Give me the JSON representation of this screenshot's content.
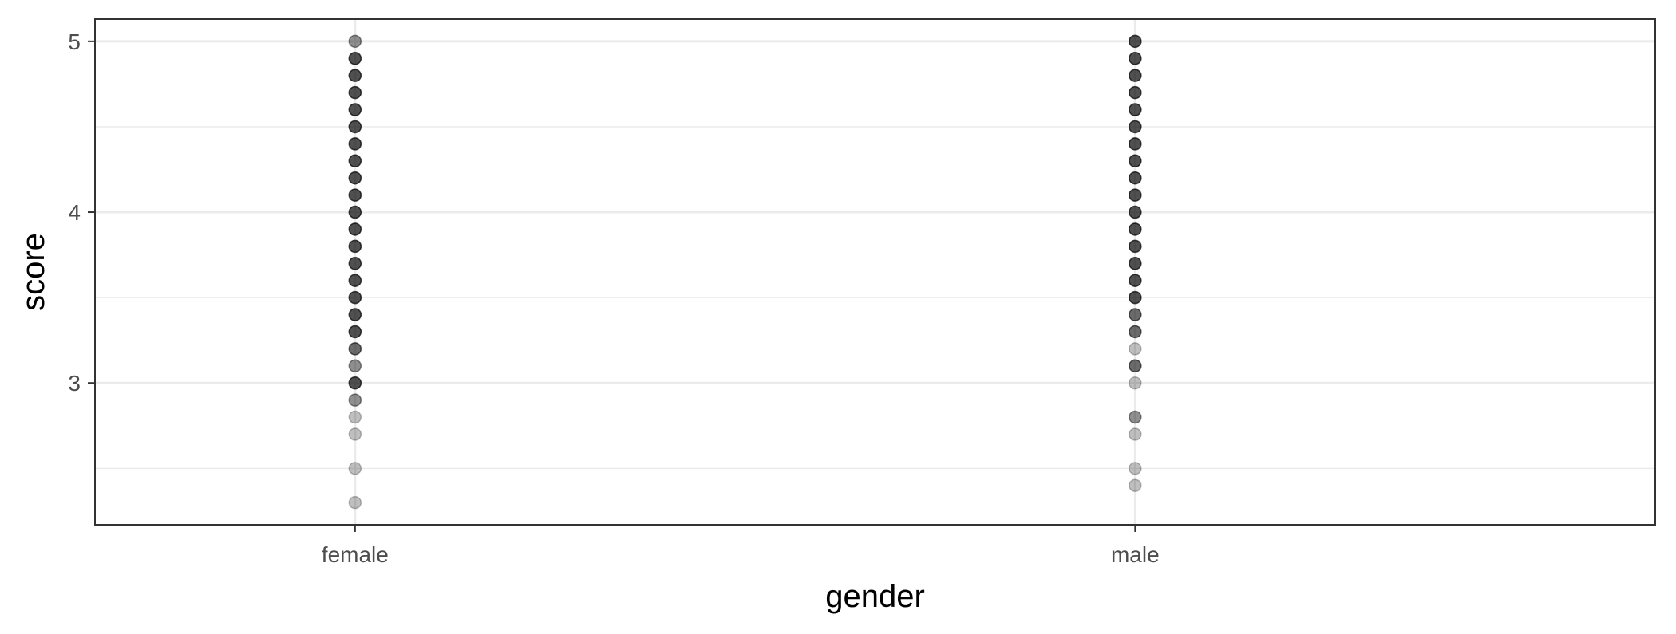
{
  "chart_data": {
    "type": "scatter",
    "title": "",
    "xlabel": "gender",
    "ylabel": "score",
    "categories": [
      "female",
      "male"
    ],
    "ylim": [
      2.17,
      5.13
    ],
    "y_ticks": [
      3,
      4,
      5
    ],
    "y_minor_ticks": [
      2.5,
      3.5,
      4.5
    ],
    "grid": true,
    "point_color": "#000000",
    "series": [
      {
        "category": "female",
        "points": [
          {
            "y": 5.0,
            "n": 2
          },
          {
            "y": 4.9,
            "n": 4
          },
          {
            "y": 4.8,
            "n": 4
          },
          {
            "y": 4.7,
            "n": 4
          },
          {
            "y": 4.6,
            "n": 4
          },
          {
            "y": 4.5,
            "n": 4
          },
          {
            "y": 4.4,
            "n": 4
          },
          {
            "y": 4.3,
            "n": 4
          },
          {
            "y": 4.2,
            "n": 4
          },
          {
            "y": 4.1,
            "n": 4
          },
          {
            "y": 4.0,
            "n": 4
          },
          {
            "y": 3.9,
            "n": 4
          },
          {
            "y": 3.8,
            "n": 4
          },
          {
            "y": 3.7,
            "n": 4
          },
          {
            "y": 3.6,
            "n": 4
          },
          {
            "y": 3.5,
            "n": 4
          },
          {
            "y": 3.4,
            "n": 4
          },
          {
            "y": 3.3,
            "n": 4
          },
          {
            "y": 3.2,
            "n": 3
          },
          {
            "y": 3.1,
            "n": 2
          },
          {
            "y": 3.0,
            "n": 4
          },
          {
            "y": 2.9,
            "n": 2
          },
          {
            "y": 2.8,
            "n": 1
          },
          {
            "y": 2.7,
            "n": 1
          },
          {
            "y": 2.5,
            "n": 1
          },
          {
            "y": 2.3,
            "n": 1
          }
        ]
      },
      {
        "category": "male",
        "points": [
          {
            "y": 5.0,
            "n": 4
          },
          {
            "y": 4.9,
            "n": 4
          },
          {
            "y": 4.8,
            "n": 4
          },
          {
            "y": 4.7,
            "n": 4
          },
          {
            "y": 4.6,
            "n": 4
          },
          {
            "y": 4.5,
            "n": 4
          },
          {
            "y": 4.4,
            "n": 4
          },
          {
            "y": 4.3,
            "n": 4
          },
          {
            "y": 4.2,
            "n": 4
          },
          {
            "y": 4.1,
            "n": 4
          },
          {
            "y": 4.0,
            "n": 4
          },
          {
            "y": 3.9,
            "n": 4
          },
          {
            "y": 3.8,
            "n": 4
          },
          {
            "y": 3.7,
            "n": 4
          },
          {
            "y": 3.6,
            "n": 4
          },
          {
            "y": 3.5,
            "n": 4
          },
          {
            "y": 3.4,
            "n": 3
          },
          {
            "y": 3.3,
            "n": 3
          },
          {
            "y": 3.2,
            "n": 1
          },
          {
            "y": 3.1,
            "n": 3
          },
          {
            "y": 3.0,
            "n": 1
          },
          {
            "y": 2.8,
            "n": 2
          },
          {
            "y": 2.7,
            "n": 1
          },
          {
            "y": 2.5,
            "n": 1
          },
          {
            "y": 2.4,
            "n": 1
          }
        ]
      }
    ]
  }
}
